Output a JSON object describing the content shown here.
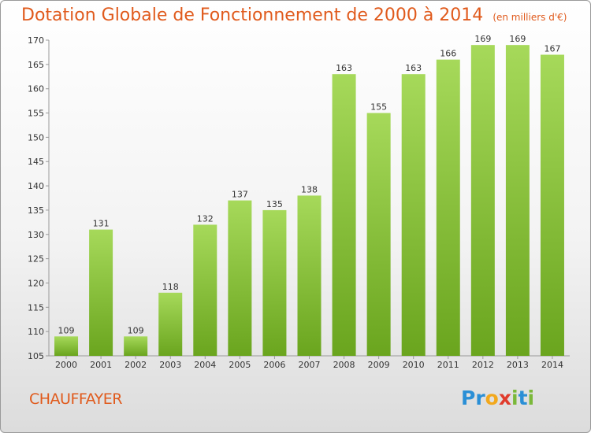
{
  "header": {
    "title": "Dotation Globale de Fonctionnement de 2000 à 2014",
    "unit": "(en milliers d'€)"
  },
  "footer": {
    "commune": "CHAUFFAYER",
    "logo": {
      "letters": [
        "P",
        "r",
        "o",
        "x",
        "i",
        "t",
        "i"
      ],
      "colors": [
        "#2a8fd6",
        "#2a8fd6",
        "#f2a81d",
        "#e03b2c",
        "#7ab83a",
        "#2a8fd6",
        "#7ab83a"
      ]
    }
  },
  "colors": {
    "accent": "#e05a1c",
    "bar_light": "#a6d95a",
    "bar_dark": "#6aa51e"
  },
  "chart_data": {
    "type": "bar",
    "categories": [
      "2000",
      "2001",
      "2002",
      "2003",
      "2004",
      "2005",
      "2006",
      "2007",
      "2008",
      "2009",
      "2010",
      "2011",
      "2012",
      "2013",
      "2014"
    ],
    "values": [
      109,
      131,
      109,
      118,
      132,
      137,
      135,
      138,
      163,
      155,
      163,
      166,
      169,
      169,
      167
    ],
    "ylim": [
      105,
      170
    ],
    "yticks": [
      105,
      110,
      115,
      120,
      125,
      130,
      135,
      140,
      145,
      150,
      155,
      160,
      165,
      170
    ],
    "xlabel": "",
    "ylabel": "",
    "grid": false
  }
}
